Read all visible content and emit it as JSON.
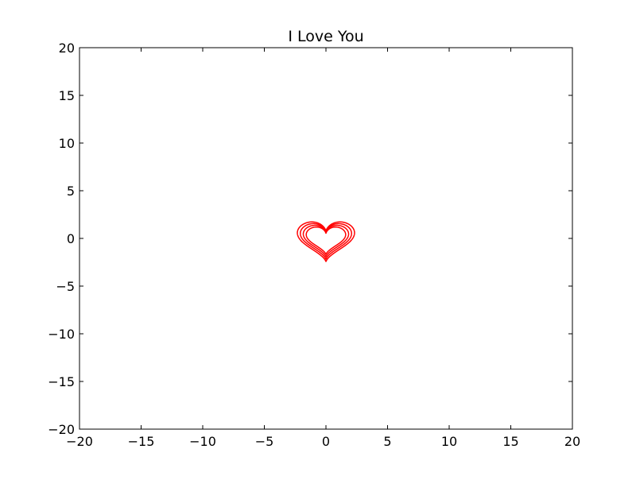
{
  "chart_data": {
    "type": "line",
    "title": "I Love You",
    "xlabel": "",
    "ylabel": "",
    "xlim": [
      -20,
      20
    ],
    "ylim": [
      -20,
      20
    ],
    "xticks": [
      -20,
      -15,
      -10,
      -5,
      0,
      5,
      10,
      15,
      20
    ],
    "yticks": [
      -20,
      -15,
      -10,
      -5,
      0,
      5,
      10,
      15,
      20
    ],
    "xtick_labels": [
      "−20",
      "−15",
      "−10",
      "−5",
      "0",
      "5",
      "10",
      "15",
      "20"
    ],
    "ytick_labels": [
      "−20",
      "−15",
      "−10",
      "−5",
      "0",
      "5",
      "10",
      "15",
      "20"
    ],
    "grid": false,
    "legend": "none",
    "curve": "heart",
    "series": [
      {
        "scale": 0.1,
        "color": "#ff0000"
      },
      {
        "scale": 0.115,
        "color": "#ff0000"
      },
      {
        "scale": 0.13,
        "color": "#ff0000"
      },
      {
        "scale": 0.145,
        "color": "#ff0000"
      }
    ]
  }
}
